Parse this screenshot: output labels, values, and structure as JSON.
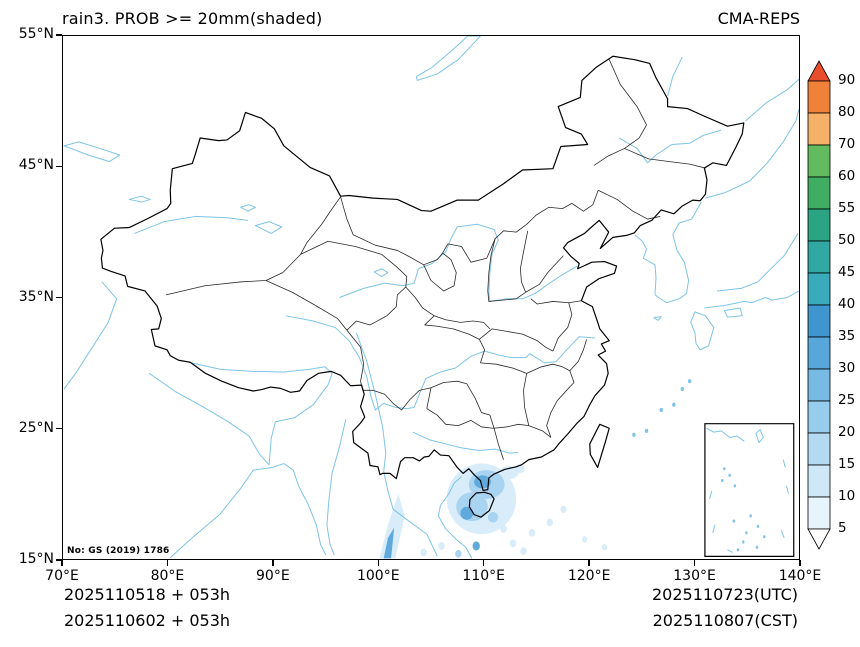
{
  "header": {
    "title": "rain3. PROB >= 20mm(shaded)",
    "model": "CMA-REPS"
  },
  "map": {
    "license_note": "No: GS (2019) 1786",
    "extent": {
      "lon_min": 70,
      "lon_max": 140,
      "lat_min": 15,
      "lat_max": 55
    }
  },
  "axes": {
    "x_ticks": [
      {
        "value": 70,
        "label": "70°E"
      },
      {
        "value": 80,
        "label": "80°E"
      },
      {
        "value": 90,
        "label": "90°E"
      },
      {
        "value": 100,
        "label": "100°E"
      },
      {
        "value": 110,
        "label": "110°E"
      },
      {
        "value": 120,
        "label": "120°E"
      },
      {
        "value": 130,
        "label": "130°E"
      },
      {
        "value": 140,
        "label": "140°E"
      }
    ],
    "y_ticks": [
      {
        "value": 15,
        "label": "15°N"
      },
      {
        "value": 25,
        "label": "25°N"
      },
      {
        "value": 35,
        "label": "35°N"
      },
      {
        "value": 45,
        "label": "45°N"
      },
      {
        "value": 55,
        "label": "55°N"
      }
    ]
  },
  "colorbar": {
    "levels_ascending": [
      5,
      10,
      15,
      20,
      25,
      30,
      35,
      40,
      45,
      50,
      55,
      60,
      70,
      80,
      90
    ],
    "colors_top_to_bottom": [
      "#e84e2d",
      "#f08138",
      "#f6b168",
      "#62bb5e",
      "#3fae63",
      "#2aa483",
      "#31a8a2",
      "#3aabba",
      "#3e95cf",
      "#57a7da",
      "#77bae4",
      "#96ccec",
      "#b4daf2",
      "#cfe8f8",
      "#e8f4fb",
      "#ffffff"
    ]
  },
  "precip_shading_areas": [
    {
      "region": "Hainan Island / Gulf of Tonkin / south China coast",
      "approx_levels": "5-30"
    },
    {
      "region": "northern Indochina streak near 100-102E, 15-20N",
      "approx_levels": "5-35"
    },
    {
      "region": "scattered spots over South China Sea 104-120E, 15-19N",
      "approx_levels": "5-15"
    }
  ],
  "palette": {
    "outline": "#000000",
    "province": "#2a2a2a",
    "water": "#7fc4e6",
    "shade_light": "#d8ecf9",
    "shade_mid": "#a9d4f1",
    "shade_deep": "#5fa9dd"
  },
  "footer": {
    "left_line1": "2025110518  +  053h",
    "left_line2": "2025110602  +  053h",
    "right_line1": "2025110723(UTC)",
    "right_line2": "2025110807(CST)"
  }
}
